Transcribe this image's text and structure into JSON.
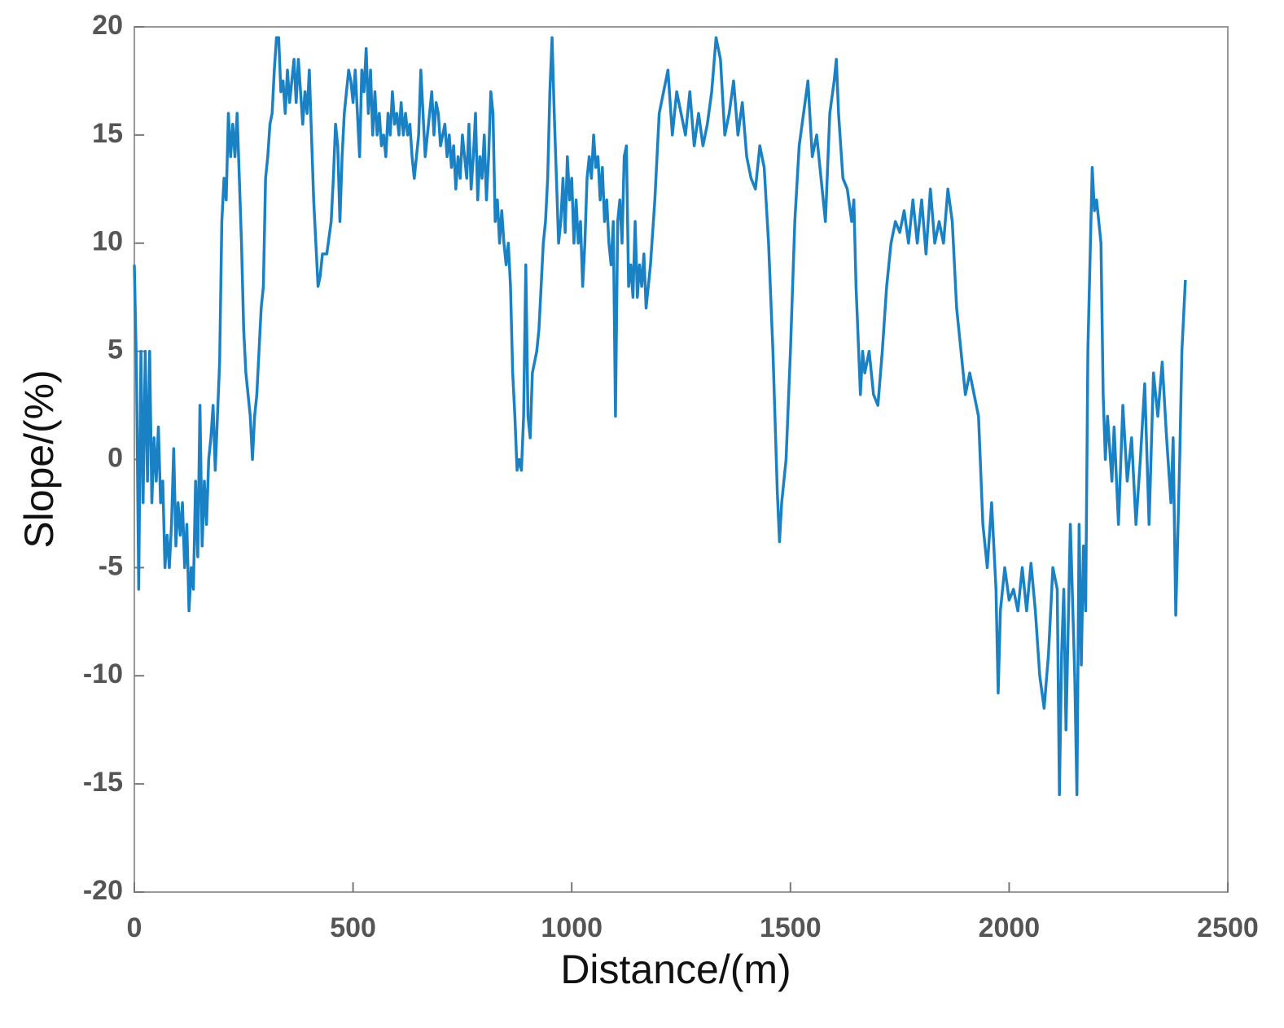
{
  "chart_data": {
    "type": "line",
    "xlabel": "Distance/(m)",
    "ylabel": "Slope/(%)",
    "xlim": [
      0,
      2500
    ],
    "ylim": [
      -20,
      20
    ],
    "xticks": [
      0,
      500,
      1000,
      1500,
      2000,
      2500
    ],
    "yticks": [
      -20,
      -15,
      -10,
      -5,
      0,
      5,
      10,
      15,
      20
    ],
    "series": [
      {
        "color": "#1a82c4",
        "x": [
          0,
          5,
          10,
          15,
          20,
          25,
          30,
          35,
          40,
          45,
          50,
          55,
          60,
          65,
          70,
          75,
          80,
          85,
          90,
          95,
          100,
          105,
          110,
          115,
          120,
          125,
          130,
          135,
          140,
          145,
          150,
          155,
          160,
          165,
          170,
          175,
          180,
          185,
          190,
          195,
          200,
          205,
          210,
          215,
          220,
          225,
          230,
          235,
          240,
          245,
          250,
          255,
          260,
          265,
          270,
          275,
          280,
          285,
          290,
          295,
          300,
          305,
          310,
          315,
          320,
          325,
          330,
          335,
          340,
          345,
          350,
          355,
          360,
          365,
          370,
          375,
          380,
          385,
          390,
          395,
          400,
          405,
          410,
          415,
          420,
          425,
          430,
          440,
          450,
          455,
          460,
          465,
          470,
          475,
          480,
          485,
          490,
          495,
          500,
          505,
          510,
          515,
          520,
          525,
          530,
          535,
          540,
          545,
          550,
          555,
          560,
          565,
          570,
          575,
          580,
          585,
          590,
          595,
          600,
          605,
          610,
          615,
          620,
          625,
          630,
          635,
          640,
          645,
          650,
          655,
          660,
          665,
          670,
          675,
          680,
          685,
          690,
          695,
          700,
          705,
          710,
          715,
          720,
          725,
          730,
          735,
          740,
          745,
          750,
          755,
          760,
          765,
          770,
          775,
          780,
          785,
          790,
          795,
          800,
          805,
          810,
          815,
          820,
          825,
          830,
          835,
          840,
          845,
          850,
          855,
          860,
          865,
          870,
          875,
          880,
          885,
          890,
          895,
          900,
          905,
          910,
          915,
          920,
          925,
          930,
          935,
          940,
          945,
          950,
          955,
          960,
          965,
          970,
          975,
          980,
          985,
          990,
          995,
          1000,
          1005,
          1010,
          1015,
          1020,
          1025,
          1030,
          1035,
          1040,
          1045,
          1050,
          1055,
          1060,
          1065,
          1070,
          1075,
          1080,
          1085,
          1090,
          1095,
          1100,
          1105,
          1110,
          1115,
          1120,
          1125,
          1130,
          1135,
          1140,
          1145,
          1150,
          1155,
          1160,
          1165,
          1170,
          1175,
          1180,
          1190,
          1200,
          1210,
          1220,
          1230,
          1240,
          1250,
          1260,
          1270,
          1280,
          1290,
          1300,
          1310,
          1320,
          1330,
          1340,
          1350,
          1360,
          1370,
          1380,
          1390,
          1400,
          1410,
          1420,
          1430,
          1440,
          1450,
          1460,
          1470,
          1475,
          1480,
          1490,
          1500,
          1510,
          1520,
          1530,
          1540,
          1550,
          1560,
          1570,
          1580,
          1590,
          1600,
          1605,
          1610,
          1620,
          1630,
          1640,
          1645,
          1650,
          1660,
          1665,
          1670,
          1680,
          1690,
          1700,
          1710,
          1720,
          1730,
          1740,
          1750,
          1760,
          1770,
          1780,
          1790,
          1800,
          1810,
          1820,
          1830,
          1840,
          1850,
          1860,
          1870,
          1880,
          1890,
          1900,
          1910,
          1920,
          1930,
          1940,
          1950,
          1960,
          1970,
          1975,
          1980,
          1990,
          2000,
          2010,
          2020,
          2030,
          2040,
          2050,
          2060,
          2070,
          2080,
          2090,
          2100,
          2110,
          2115,
          2120,
          2125,
          2130,
          2140,
          2150,
          2155,
          2160,
          2165,
          2170,
          2175,
          2180,
          2190,
          2195,
          2200,
          2210,
          2215,
          2220,
          2225,
          2235,
          2240,
          2250,
          2260,
          2270,
          2280,
          2290,
          2300,
          2310,
          2320,
          2330,
          2340,
          2350,
          2360,
          2370,
          2375,
          2381,
          2390,
          2395,
          2403
        ],
        "values": [
          9,
          4,
          -6,
          5,
          -2,
          5,
          -1,
          5,
          -2,
          1,
          -1,
          1.5,
          -2,
          -1,
          -5,
          -3.5,
          -5,
          -3,
          0.5,
          -4,
          -2,
          -3.5,
          -2,
          -5,
          -3,
          -7,
          -5,
          -6,
          -1,
          -4.5,
          2.5,
          -4,
          -1,
          -3,
          0,
          1,
          2.5,
          -0.5,
          2,
          4.5,
          11,
          13,
          12,
          16,
          14,
          15.5,
          14,
          16,
          13,
          10,
          6,
          4,
          3,
          2,
          0,
          2,
          3,
          5,
          7,
          8,
          13,
          14,
          15.5,
          16,
          18,
          19.5,
          19.5,
          17,
          17.5,
          16,
          18,
          16.5,
          17.5,
          18.5,
          16.5,
          18.5,
          17,
          15.5,
          17,
          16,
          18,
          15,
          12,
          10,
          8,
          8.5,
          9.5,
          9.5,
          11,
          13,
          15.5,
          14.5,
          11,
          14,
          16,
          17,
          18,
          17.5,
          16.5,
          18,
          16,
          14,
          18,
          17,
          19,
          16,
          18,
          15,
          17,
          15,
          16,
          14.5,
          15,
          14,
          16,
          15,
          17,
          15.5,
          16,
          15,
          16.5,
          15,
          16,
          15,
          15.5,
          14,
          13,
          14,
          15,
          18,
          16,
          14,
          15,
          16,
          17,
          15,
          16.5,
          16,
          14.5,
          15,
          15.5,
          14,
          15,
          13.5,
          14.5,
          12.5,
          14,
          13,
          15,
          14,
          13,
          15.5,
          12.5,
          14,
          16,
          12,
          14,
          13,
          15,
          12,
          14,
          17,
          16,
          11,
          12,
          10,
          11.5,
          10,
          9,
          10,
          8,
          4,
          2,
          -0.5,
          0,
          -0.5,
          2,
          9,
          2,
          1,
          4,
          4.5,
          5,
          6,
          8,
          10,
          11,
          13,
          17,
          19.5,
          16,
          13,
          10,
          11,
          13,
          10.5,
          14,
          12,
          13,
          10,
          12,
          10,
          11,
          8,
          10,
          13,
          14,
          13,
          15,
          13.5,
          14,
          12,
          13.5,
          11,
          12,
          10,
          9,
          11,
          2,
          11,
          12,
          10,
          14,
          14.5,
          8,
          9,
          7.5,
          11,
          7.5,
          9,
          8,
          9.5,
          7,
          8,
          9,
          12,
          16,
          17,
          18,
          15,
          17,
          16,
          15,
          17,
          14.5,
          16,
          14.5,
          15.5,
          17,
          19.5,
          18.5,
          15,
          16,
          17.5,
          15,
          16.5,
          14,
          13,
          12.5,
          14.5,
          13.5,
          10,
          5,
          -1.5,
          -3.8,
          -2,
          0,
          5,
          11,
          14.5,
          16,
          17.5,
          14,
          15,
          13,
          11,
          16,
          17.5,
          18.5,
          16,
          13,
          12.5,
          11,
          12,
          8,
          3,
          5,
          4,
          5,
          3,
          2.5,
          5,
          8,
          10,
          11,
          10.5,
          11.5,
          10,
          12,
          10,
          12,
          9.5,
          12.5,
          10,
          11,
          10,
          12.5,
          11,
          7,
          5,
          3,
          4,
          3,
          2,
          -3,
          -5,
          -2,
          -6,
          -10.8,
          -7,
          -5,
          -6.5,
          -6,
          -7,
          -5,
          -7,
          -4.8,
          -7,
          -10,
          -11.5,
          -9,
          -5,
          -6,
          -15.5,
          -9,
          -6,
          -12.5,
          -3,
          -10,
          -15.5,
          -3,
          -9.5,
          -4,
          -7,
          5,
          13.5,
          11.5,
          12,
          10,
          3,
          0,
          2,
          -1,
          1.5,
          -3,
          2.5,
          -1,
          1,
          -3,
          0,
          3.5,
          -3,
          4,
          2,
          4.5,
          1,
          -2,
          1,
          -7.2,
          0,
          5,
          8.3
        ]
      }
    ]
  }
}
